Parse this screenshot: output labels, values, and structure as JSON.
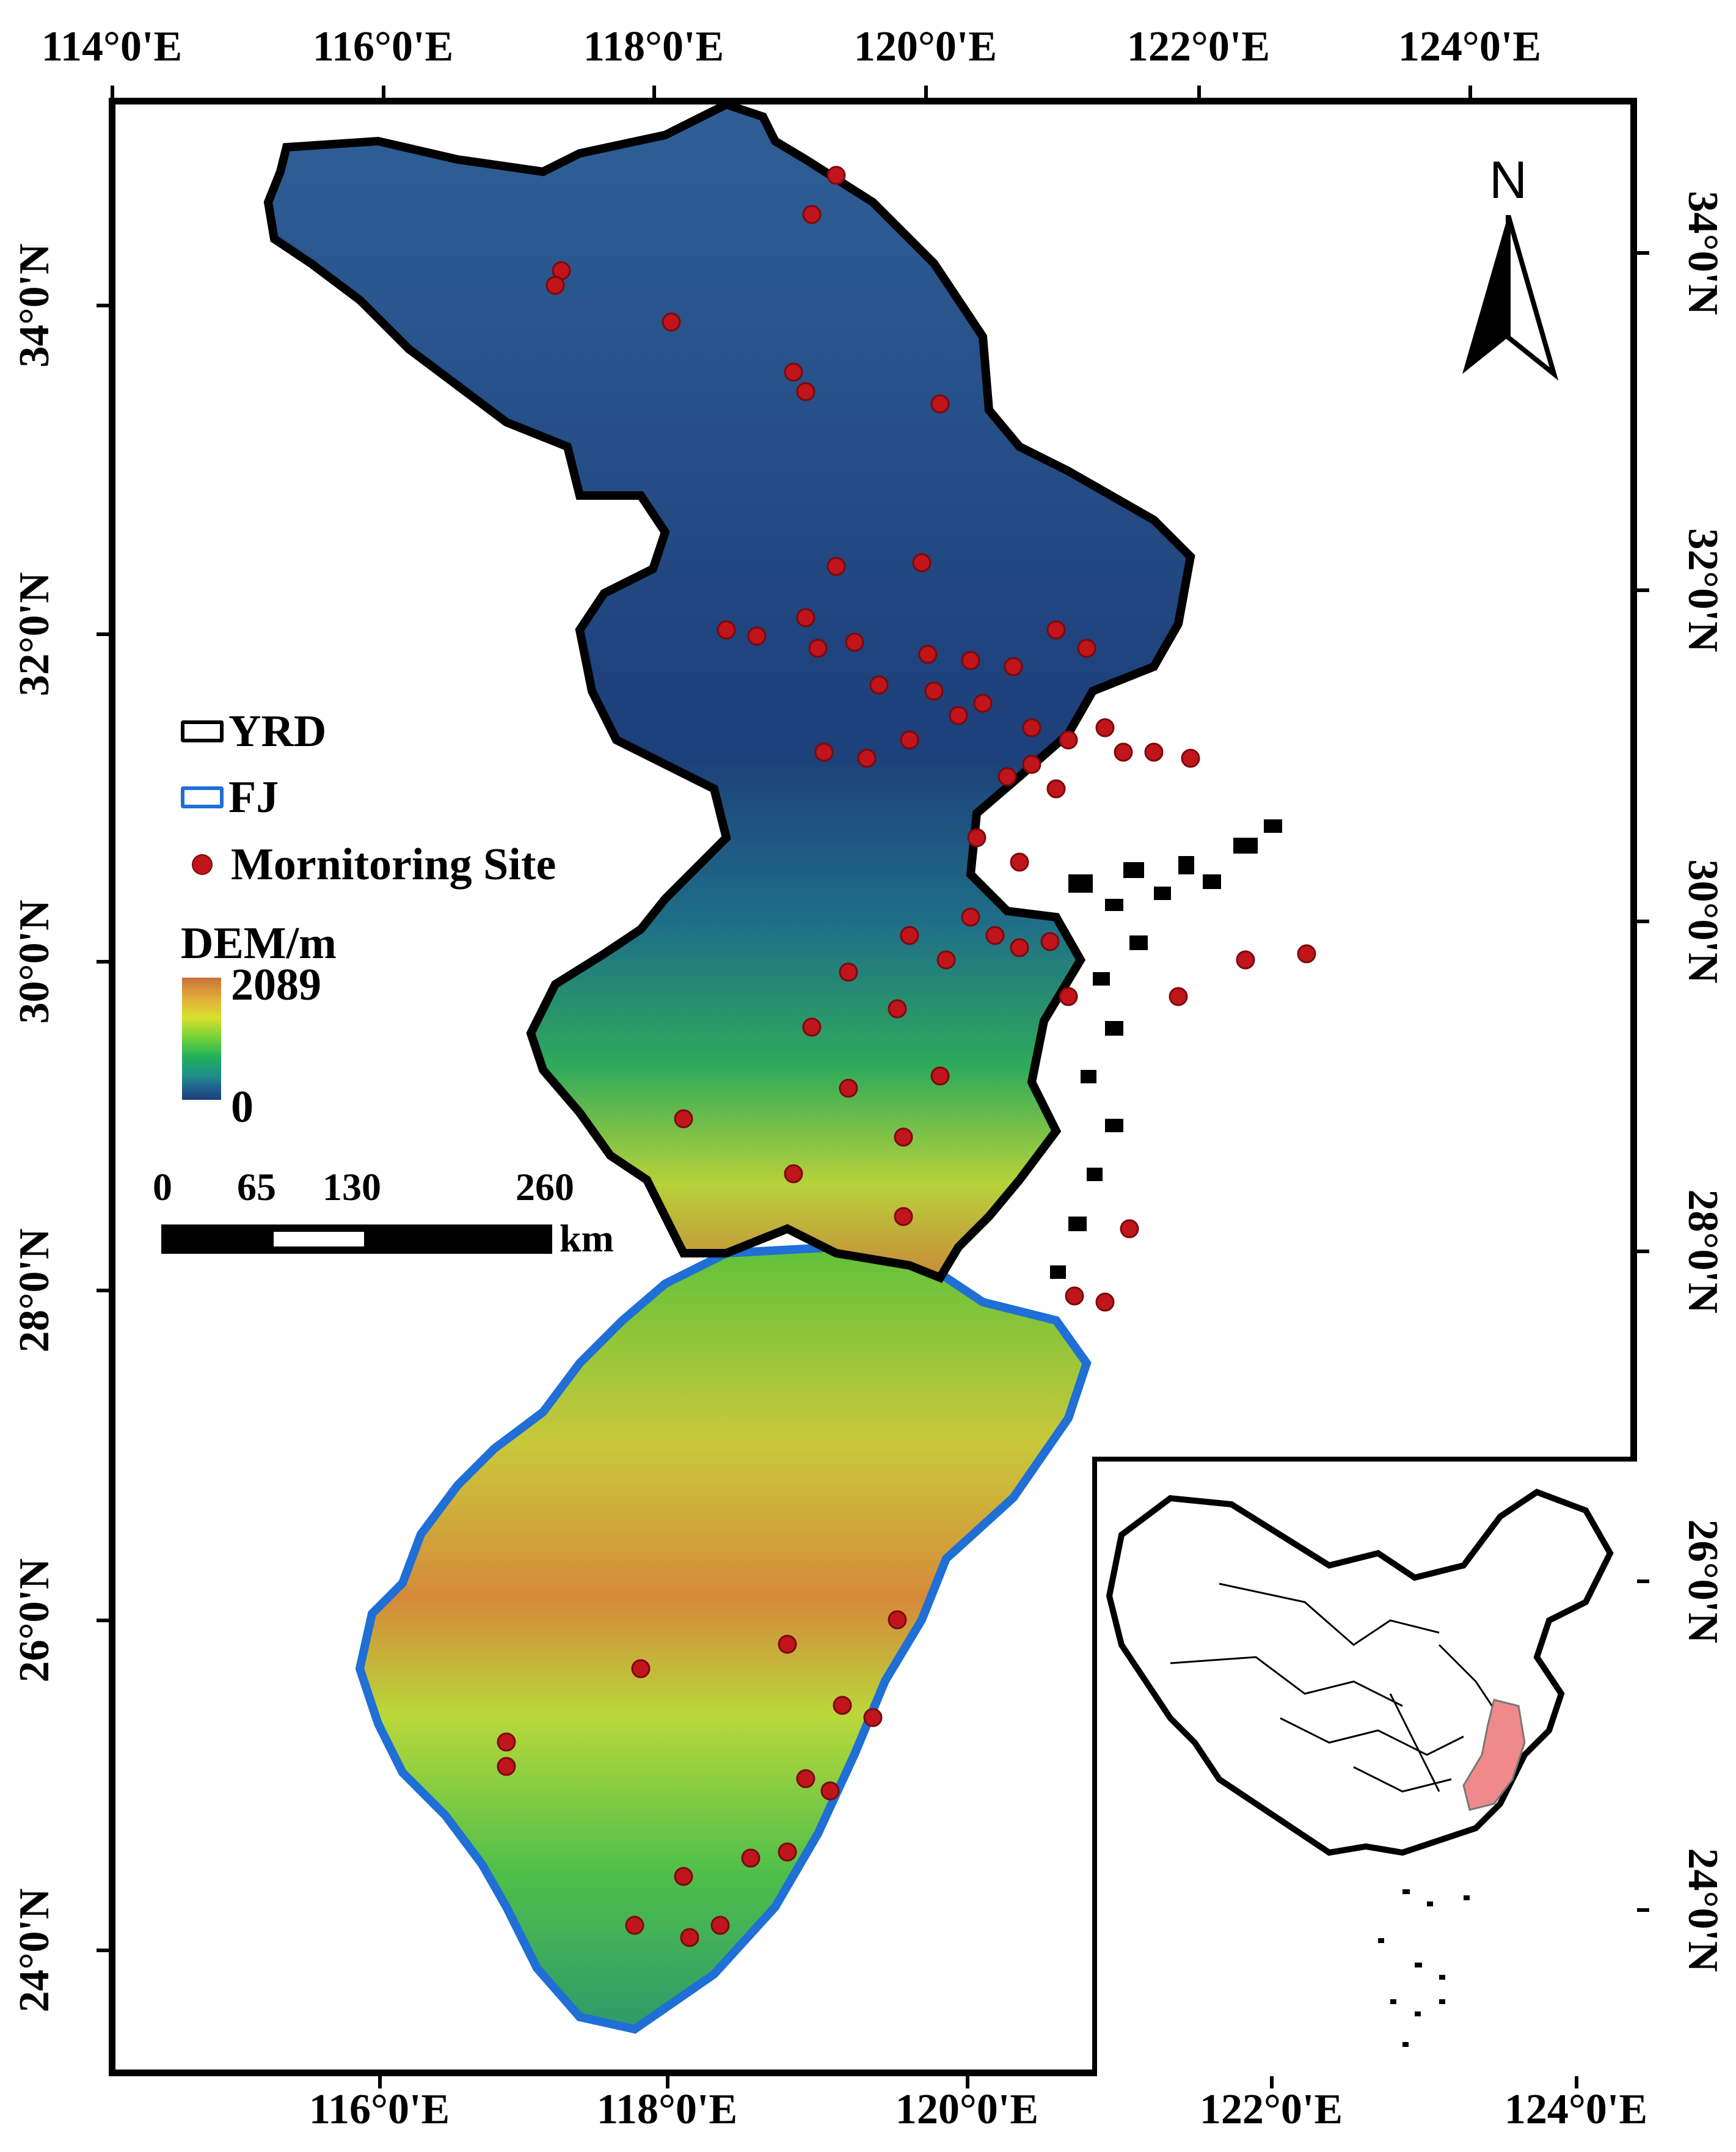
{
  "map": {
    "top_axis_labels": [
      "114°0'E",
      "116°0'E",
      "118°0'E",
      "120°0'E",
      "122°0'E",
      "124°0'E"
    ],
    "bottom_axis_labels": [
      "116°0'E",
      "118°0'E",
      "120°0'E",
      "122°0'E",
      "124°0'E"
    ],
    "left_axis_labels": [
      "34°0'N",
      "32°0'N",
      "30°0'N",
      "28°0'N",
      "26°0'N",
      "24°0'N"
    ],
    "right_axis_labels": [
      "34°0'N",
      "32°0'N",
      "30°0'N",
      "28°0'N",
      "26°0'N",
      "24°0'N"
    ],
    "north_label": "N"
  },
  "legend": {
    "yrd_label": "YRD",
    "fj_label": "FJ",
    "site_label": "Mornitoring Site",
    "dem_title": "DEM/m",
    "dem_max": "2089",
    "dem_min": "0",
    "colors": {
      "yrd_outline": "#000000",
      "fj_outline": "#1f6fd6",
      "site": "#c0151b",
      "dem_low": "#1d3f7a",
      "dem_high": "#c8723a"
    }
  },
  "scalebar": {
    "labels": [
      "0",
      "65",
      "130",
      "260"
    ],
    "unit": "km"
  },
  "inset": {
    "highlight_color": "#f08a8a"
  }
}
